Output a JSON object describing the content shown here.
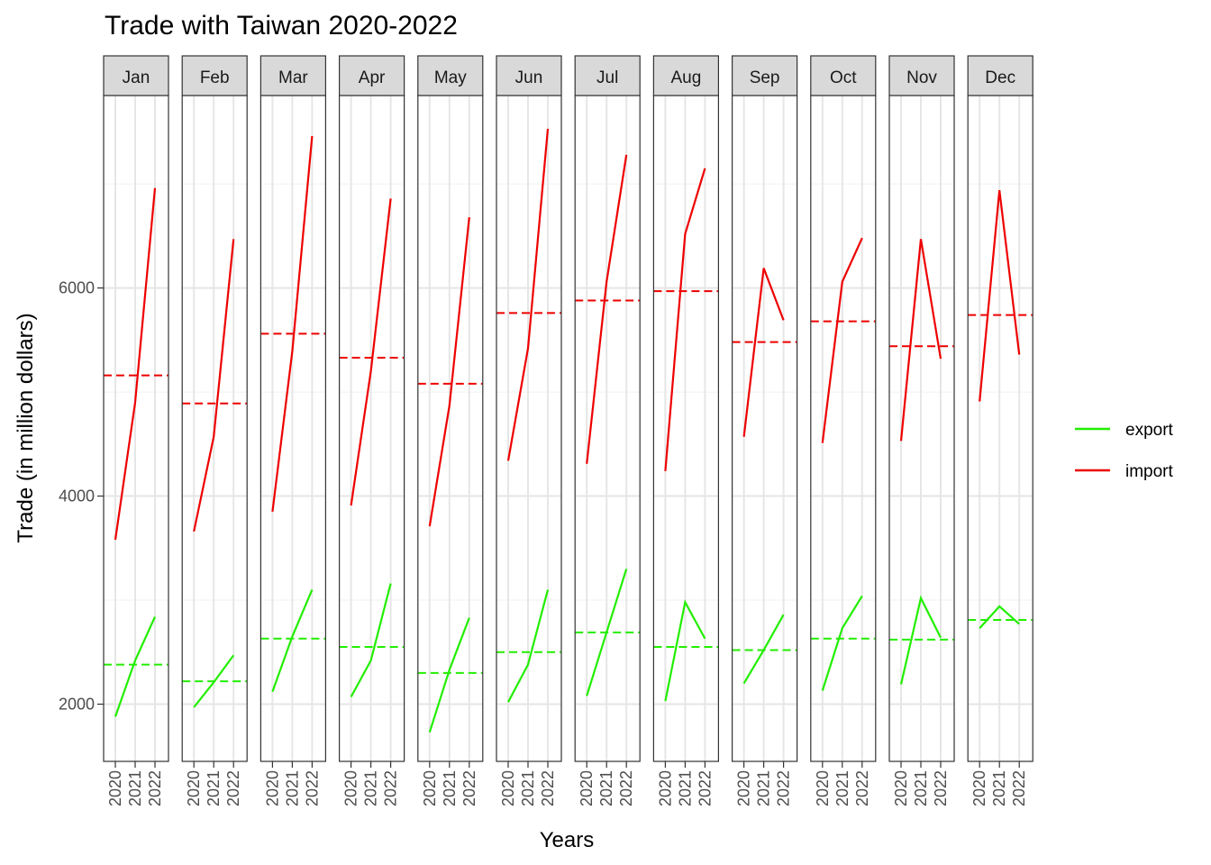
{
  "chart_data": {
    "type": "line",
    "title": "Trade with Taiwan 2020-2022",
    "xlabel": "Years",
    "ylabel": "Trade (in million dollars)",
    "facet_by": "month",
    "x": [
      "2020",
      "2021",
      "2022"
    ],
    "ylim": [
      1450,
      7850
    ],
    "y_ticks": [
      2000,
      4000,
      6000
    ],
    "grid": true,
    "legend_position": "right",
    "months": [
      "Jan",
      "Feb",
      "Mar",
      "Apr",
      "May",
      "Jun",
      "Jul",
      "Aug",
      "Sep",
      "Oct",
      "Nov",
      "Dec"
    ],
    "series": [
      {
        "name": "export",
        "color": "#22ee00",
        "values": [
          [
            1880,
            2420,
            2840
          ],
          [
            1970,
            2210,
            2470
          ],
          [
            2120,
            2650,
            3100
          ],
          [
            2070,
            2420,
            3160
          ],
          [
            1730,
            2330,
            2830
          ],
          [
            2020,
            2380,
            3100
          ],
          [
            2080,
            2690,
            3300
          ],
          [
            2030,
            2980,
            2630
          ],
          [
            2200,
            2520,
            2860
          ],
          [
            2130,
            2730,
            3040
          ],
          [
            2190,
            3020,
            2640
          ],
          [
            2730,
            2940,
            2770
          ]
        ],
        "means": [
          2380,
          2220,
          2630,
          2550,
          2300,
          2500,
          2690,
          2550,
          2520,
          2630,
          2620,
          2810
        ]
      },
      {
        "name": "import",
        "color": "#ee0000",
        "values": [
          [
            3580,
            4900,
            6960
          ],
          [
            3660,
            4570,
            6470
          ],
          [
            3850,
            5390,
            7460
          ],
          [
            3910,
            5200,
            6860
          ],
          [
            3710,
            4870,
            6680
          ],
          [
            4340,
            5420,
            7530
          ],
          [
            4310,
            6060,
            7280
          ],
          [
            4240,
            6520,
            7150
          ],
          [
            4570,
            6190,
            5690
          ],
          [
            4510,
            6060,
            6480
          ],
          [
            4530,
            6470,
            5320
          ],
          [
            4910,
            6940,
            5360
          ]
        ],
        "means": [
          5160,
          4890,
          5560,
          5330,
          5080,
          5760,
          5880,
          5970,
          5480,
          5680,
          5440,
          5740
        ]
      }
    ]
  }
}
